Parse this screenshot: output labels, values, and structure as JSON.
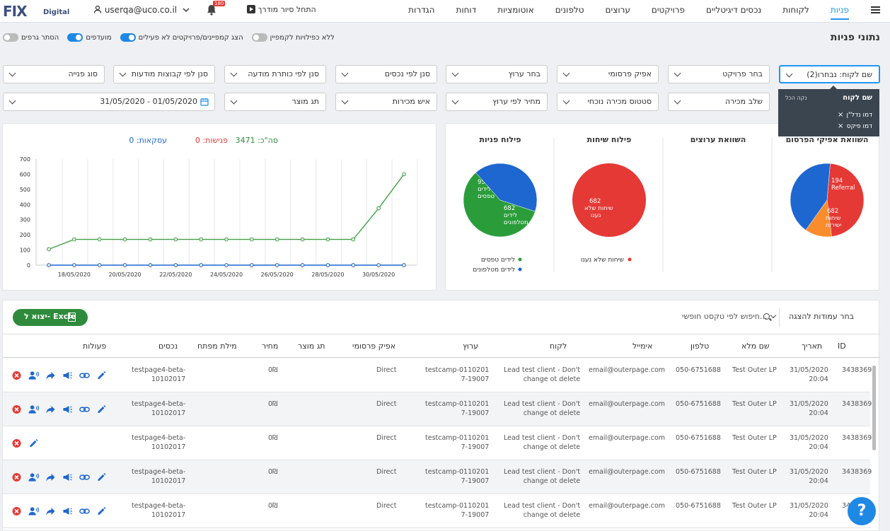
{
  "topbar": {
    "logo_main": "FIX",
    "logo_sub": "Digital",
    "user_email": "userqa@uco.co.il",
    "notifications_count": "180",
    "tour_label": "התחל סיור מודרך",
    "menu": [
      "פניות",
      "לקוחות",
      "נכסים דיגיטליים",
      "פרויקטים",
      "ערוצים",
      "טלפונים",
      "אוטומציות",
      "דוחות",
      "הגדרות"
    ],
    "active_menu": "פניות"
  },
  "page": {
    "title": "נתוני פניות",
    "toggles": [
      {
        "label": "ללא כפילויות לקמפיין",
        "on": false
      },
      {
        "label": "הצג קמפיינים/פרויקטים לא פעילים",
        "on": true
      },
      {
        "label": "מועדפים",
        "on": true
      },
      {
        "label": "הסתר גרפים",
        "on": false
      }
    ]
  },
  "filters": {
    "row1": [
      "שם לקוח: נבחרו(2)",
      "בחר פרויקט",
      "אפיק פרסומי",
      "בחר ערוץ",
      "סנן לפי נכסים",
      "סנן לפי כותרת מודעה",
      "סנן לפי קבוצות מודעות",
      "סוג פנייה"
    ],
    "row2": [
      "שלב מכירה",
      "סטטוס מכירה נוכחי",
      "מחיר לפי ערוץ",
      "איש מכירות",
      "תג מוצר",
      "31/05/2020 - 01/05/2020"
    ],
    "client_dropdown": {
      "header": "שם לקוח",
      "clear_all": "נקה הכל",
      "items": [
        "דמו נדל\"ן",
        "דמו פיקס"
      ]
    }
  },
  "charts": {
    "pie_titles": [
      "השוואת אפיקי הפרסום",
      "השוואת ערוצים",
      "פילוח שיחות",
      "פילוח פניות"
    ],
    "line_summary": {
      "total_label": "סה\"כ: 3471",
      "meetings_label": "פגישות: 0",
      "deals_label": "עסקאות: 0"
    }
  },
  "chart_data": [
    {
      "type": "pie",
      "title": "השוואת אפיקי הפרסום",
      "slices": [
        {
          "label": "Direct",
          "value": 765,
          "color": "#e53935"
        },
        {
          "label": "Referral",
          "value": 194,
          "color": "#fb8c2c"
        },
        {
          "label": "שיחות ישירות",
          "value": 682,
          "color": "#1e66d0"
        }
      ]
    },
    {
      "type": "pie",
      "title": "פילוח שיחות",
      "slices": [
        {
          "label": "שיחות שלא נענו",
          "value": 682,
          "color": "#e53935"
        }
      ],
      "legend": [
        "שיחות שלא נענו"
      ]
    },
    {
      "type": "pie",
      "title": "פילוח פניות",
      "slices": [
        {
          "label": "לידים טפסים",
          "value": 959,
          "color": "#2a9d3a"
        },
        {
          "label": "לידים מטלפונים",
          "value": 682,
          "color": "#1e66d0"
        }
      ],
      "legend": [
        "לידים טפסים",
        "לידים מטלפונים"
      ]
    },
    {
      "type": "line",
      "x_ticks": [
        "18/05/2020",
        "20/05/2020",
        "22/05/2020",
        "24/05/2020",
        "26/05/2020",
        "28/05/2020",
        "30/05/2020"
      ],
      "x": [
        "17/05/2020",
        "18/05/2020",
        "19/05/2020",
        "20/05/2020",
        "21/05/2020",
        "22/05/2020",
        "23/05/2020",
        "24/05/2020",
        "25/05/2020",
        "26/05/2020",
        "27/05/2020",
        "28/05/2020",
        "29/05/2020",
        "30/05/2020",
        "31/05/2020"
      ],
      "ylim": [
        0,
        700
      ],
      "y_ticks": [
        0,
        100,
        200,
        300,
        400,
        500,
        600,
        700
      ],
      "grid": true,
      "series": [
        {
          "color": "#43a047",
          "values": [
            105,
            170,
            170,
            170,
            170,
            170,
            170,
            170,
            170,
            170,
            170,
            170,
            170,
            375,
            600
          ]
        },
        {
          "color": "#1e66d0",
          "values": [
            0,
            0,
            0,
            0,
            0,
            0,
            0,
            0,
            0,
            0,
            0,
            0,
            0,
            0,
            0
          ]
        }
      ]
    }
  ],
  "table": {
    "excel_label": "יצוא ל- Excle",
    "search_placeholder": "חיפוש לפי טקסט חופשי...",
    "columns_select": "בחר עמודות להצגה",
    "headers": [
      "ID",
      "תאריך",
      "שם מלא",
      "טלפון",
      "אימייל",
      "לקוח",
      "ערוץ",
      "אפיק פרסומי",
      "תג מוצר",
      "מחיר",
      "מילת מפתח",
      "נכסים",
      "פעולות"
    ],
    "rows": [
      {
        "id": "3438369",
        "date1": "31/05/2020",
        "date2": "20:04",
        "name": "Test Outer LP",
        "phone": "050-6751688",
        "email": "email@outerpage.com",
        "client1": "Lead test client - Don't",
        "client2": "change ot delete",
        "channel1": "testcamp-0110201",
        "channel2": "7-19007",
        "source": "Direct",
        "price": "0₪",
        "asset1": "testpage4-beta-",
        "asset2": "10102017",
        "full": true
      },
      {
        "id": "3438369",
        "date1": "31/05/2020",
        "date2": "20:04",
        "name": "Test Outer LP",
        "phone": "050-6751688",
        "email": "email@outerpage.com",
        "client1": "Lead test client - Don't",
        "client2": "change ot delete",
        "channel1": "testcamp-0110201",
        "channel2": "7-19007",
        "source": "Direct",
        "price": "0₪",
        "asset1": "testpage4-beta-",
        "asset2": "10102017",
        "full": true
      },
      {
        "id": "3438369",
        "date1": "31/05/2020",
        "date2": "20:04",
        "name": "Test Outer LP",
        "phone": "050-6751688",
        "email": "email@outerpage.com",
        "client1": "Lead test client - Don't",
        "client2": "change ot delete",
        "channel1": "testcamp-0110201",
        "channel2": "7-19007",
        "source": "Direct",
        "price": "0₪",
        "asset1": "testpage4-beta-",
        "asset2": "10102017",
        "full": false
      },
      {
        "id": "3438369",
        "date1": "31/05/2020",
        "date2": "20:04",
        "name": "Test Outer LP",
        "phone": "050-6751688",
        "email": "email@outerpage.com",
        "client1": "Lead test client - Don't",
        "client2": "change ot delete",
        "channel1": "testcamp-0110201",
        "channel2": "7-19007",
        "source": "Direct",
        "price": "0₪",
        "asset1": "testpage4-beta-",
        "asset2": "10102017",
        "full": true
      },
      {
        "id": "3438369",
        "date1": "31/05/2020",
        "date2": "20:04",
        "name": "Test Outer LP",
        "phone": "050-6751688",
        "email": "email@outerpage.com",
        "client1": "Lead test client - Don't",
        "client2": "change ot delete",
        "channel1": "testcamp-0110201",
        "channel2": "7-19007",
        "source": "Direct",
        "price": "0₪",
        "asset1": "testpage4-beta-",
        "asset2": "10102017",
        "full": true
      }
    ]
  },
  "help_label": "?"
}
